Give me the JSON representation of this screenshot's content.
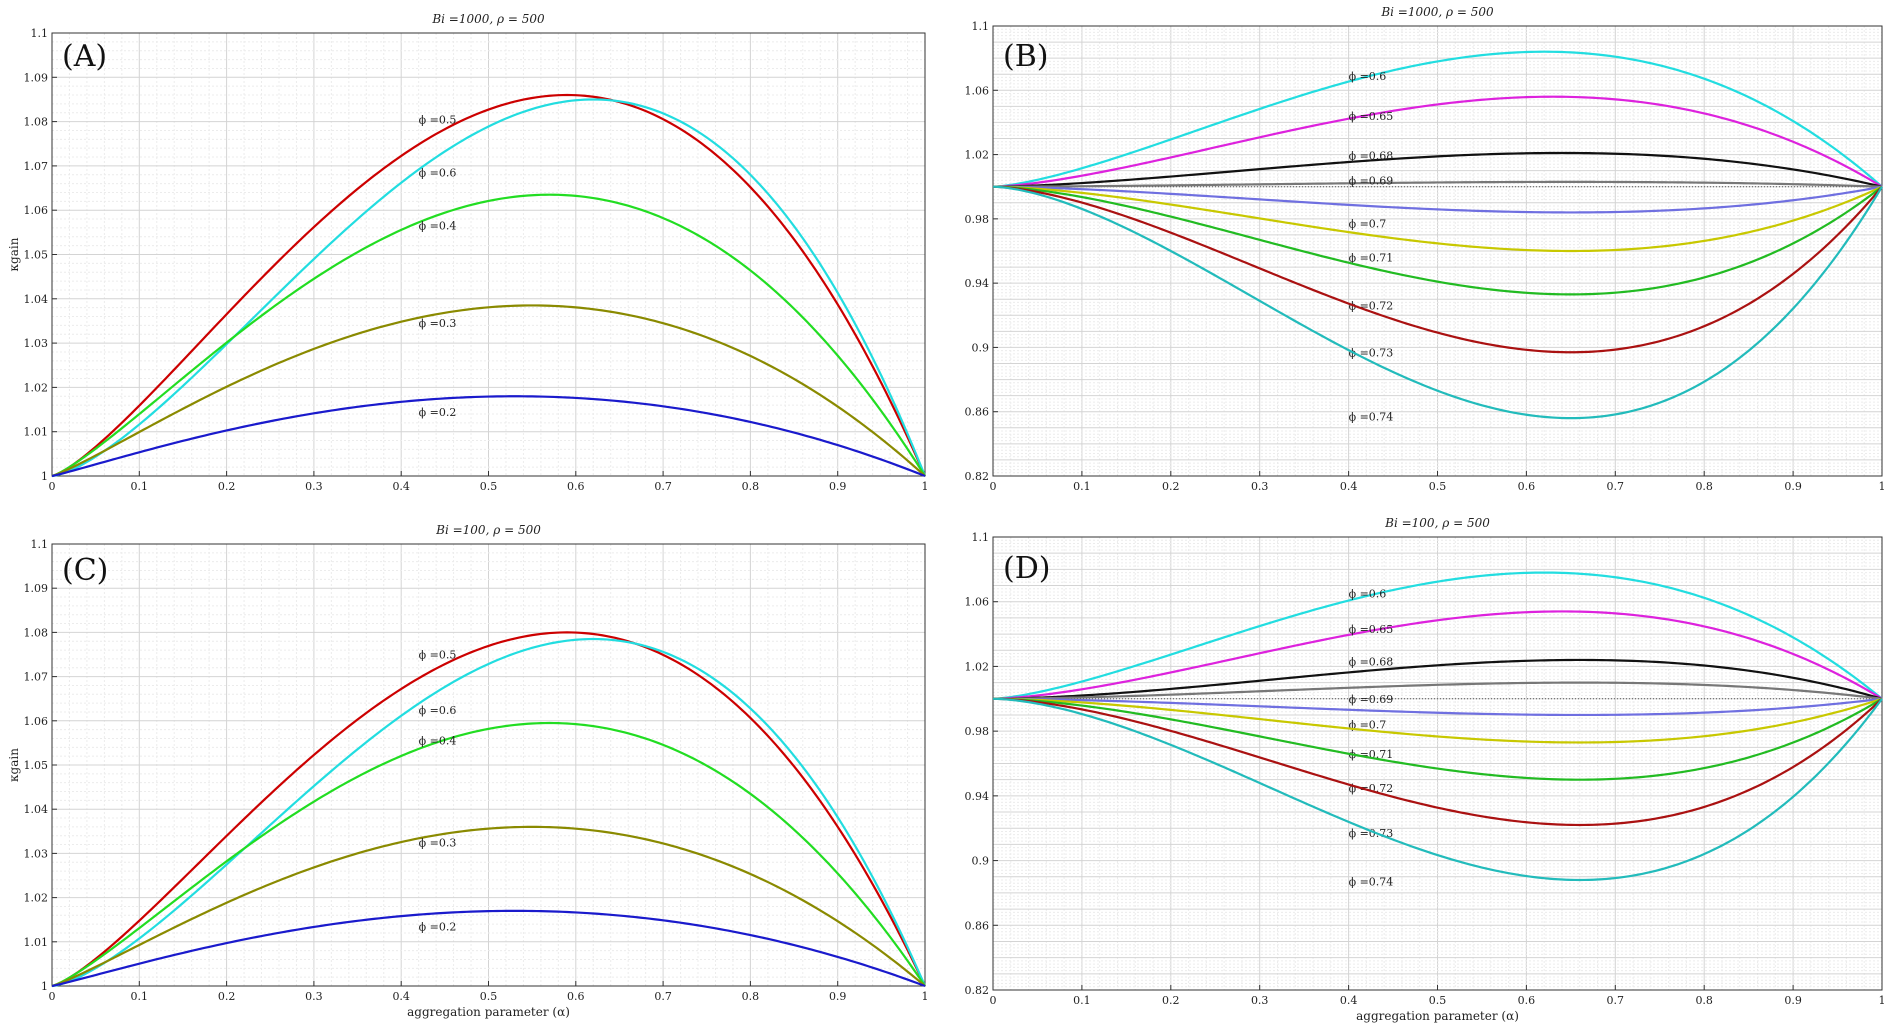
{
  "chart_data": [
    {
      "panel": "(A)",
      "type": "line",
      "title": "Bi =1000, ρ = 500",
      "xlabel": "",
      "ylabel": "κgain",
      "xlim": [
        0,
        1
      ],
      "ylim": [
        1,
        1.1
      ],
      "xticks": [
        "0",
        "0.1",
        "0.2",
        "0.3",
        "0.4",
        "0.5",
        "0.6",
        "0.7",
        "0.8",
        "0.9",
        "1"
      ],
      "yticks": [
        "1",
        "1.01",
        "1.02",
        "1.03",
        "1.04",
        "1.05",
        "1.06",
        "1.07",
        "1.08",
        "1.09",
        "1.1"
      ],
      "grid": true,
      "series": [
        {
          "name": "ϕ =0.5",
          "color": "#cc0000",
          "peak_x": 0.59,
          "peak_y": 1.086,
          "label_x": 0.42,
          "label_y": 1.0805
        },
        {
          "name": "ϕ =0.6",
          "color": "#22dde0",
          "peak_x": 0.62,
          "peak_y": 1.085,
          "label_x": 0.42,
          "label_y": 1.0685
        },
        {
          "name": "ϕ =0.4",
          "color": "#22dd22",
          "peak_x": 0.57,
          "peak_y": 1.0635,
          "label_x": 0.42,
          "label_y": 1.0565
        },
        {
          "name": "ϕ =0.3",
          "color": "#8a8a00",
          "peak_x": 0.55,
          "peak_y": 1.0385,
          "label_x": 0.42,
          "label_y": 1.0345
        },
        {
          "name": "ϕ =0.2",
          "color": "#1a1acc",
          "peak_x": 0.53,
          "peak_y": 1.018,
          "label_x": 0.42,
          "label_y": 1.0145
        }
      ]
    },
    {
      "panel": "(B)",
      "type": "line",
      "title": "Bi =1000, ρ = 500",
      "xlabel": "",
      "ylabel": "",
      "xlim": [
        0,
        1
      ],
      "ylim": [
        0.82,
        1.1
      ],
      "xticks": [
        "0",
        "0.1",
        "0.2",
        "0.3",
        "0.4",
        "0.5",
        "0.6",
        "0.7",
        "0.8",
        "0.9",
        "1"
      ],
      "yticks": [
        "0.82",
        "0.86",
        "0.9",
        "0.94",
        "0.98",
        "1.02",
        "1.06",
        "1.1"
      ],
      "ytick_values": [
        0.82,
        0.86,
        0.9,
        0.94,
        0.98,
        1.02,
        1.06,
        1.1
      ],
      "grid": true,
      "series": [
        {
          "name": "ϕ =0.6",
          "color": "#22dde0",
          "peak_x": 0.62,
          "peak_y": 1.084,
          "label_x": 0.4,
          "label_y": 1.069
        },
        {
          "name": "ϕ =0.65",
          "color": "#dd22dd",
          "peak_x": 0.63,
          "peak_y": 1.056,
          "label_x": 0.4,
          "label_y": 1.044
        },
        {
          "name": "ϕ =0.68",
          "color": "#111111",
          "peak_x": 0.64,
          "peak_y": 1.021,
          "label_x": 0.4,
          "label_y": 1.0195
        },
        {
          "name": "ϕ =0.69",
          "color": "#777777",
          "peak_x": 0.65,
          "peak_y": 1.003,
          "label_x": 0.4,
          "label_y": 1.004
        },
        {
          "name": "ϕ =0.7",
          "color": "#6f6fe0",
          "peak_x": 0.65,
          "peak_y": 0.984,
          "label_x": 0.4,
          "label_y": 0.977
        },
        {
          "name": "ϕ =0.71",
          "color": "#c8c800",
          "peak_x": 0.65,
          "peak_y": 0.96,
          "label_x": 0.4,
          "label_y": 0.956
        },
        {
          "name": "ϕ =0.72",
          "color": "#22bb22",
          "peak_x": 0.65,
          "peak_y": 0.933,
          "label_x": 0.4,
          "label_y": 0.926
        },
        {
          "name": "ϕ =0.73",
          "color": "#aa1111",
          "peak_x": 0.65,
          "peak_y": 0.897,
          "label_x": 0.4,
          "label_y": 0.897
        },
        {
          "name": "ϕ =0.74",
          "color": "#22bbbb",
          "peak_x": 0.65,
          "peak_y": 0.856,
          "label_x": 0.4,
          "label_y": 0.857
        }
      ]
    },
    {
      "panel": "(C)",
      "type": "line",
      "title": "Bi =100, ρ = 500",
      "xlabel": "aggregation parameter (α)",
      "ylabel": "κgain",
      "xlim": [
        0,
        1
      ],
      "ylim": [
        1,
        1.1
      ],
      "xticks": [
        "0",
        "0.1",
        "0.2",
        "0.3",
        "0.4",
        "0.5",
        "0.6",
        "0.7",
        "0.8",
        "0.9",
        "1"
      ],
      "yticks": [
        "1",
        "1.01",
        "1.02",
        "1.03",
        "1.04",
        "1.05",
        "1.06",
        "1.07",
        "1.08",
        "1.09",
        "1.1"
      ],
      "grid": true,
      "series": [
        {
          "name": "ϕ =0.5",
          "color": "#cc0000",
          "peak_x": 0.59,
          "peak_y": 1.08,
          "label_x": 0.42,
          "label_y": 1.075
        },
        {
          "name": "ϕ =0.6",
          "color": "#22dde0",
          "peak_x": 0.62,
          "peak_y": 1.0785,
          "label_x": 0.42,
          "label_y": 1.0625
        },
        {
          "name": "ϕ =0.4",
          "color": "#22dd22",
          "peak_x": 0.57,
          "peak_y": 1.0595,
          "label_x": 0.42,
          "label_y": 1.0555
        },
        {
          "name": "ϕ =0.3",
          "color": "#8a8a00",
          "peak_x": 0.55,
          "peak_y": 1.036,
          "label_x": 0.42,
          "label_y": 1.0325
        },
        {
          "name": "ϕ =0.2",
          "color": "#1a1acc",
          "peak_x": 0.53,
          "peak_y": 1.017,
          "label_x": 0.42,
          "label_y": 1.0135
        }
      ]
    },
    {
      "panel": "(D)",
      "type": "line",
      "title": "Bi =100, ρ = 500",
      "xlabel": "aggregation parameter (α)",
      "ylabel": "",
      "xlim": [
        0,
        1
      ],
      "ylim": [
        0.82,
        1.1
      ],
      "xticks": [
        "0",
        "0.1",
        "0.2",
        "0.3",
        "0.4",
        "0.5",
        "0.6",
        "0.7",
        "0.8",
        "0.9",
        "1"
      ],
      "yticks": [
        "0.82",
        "0.86",
        "0.9",
        "0.94",
        "0.98",
        "1.02",
        "1.06",
        "1.1"
      ],
      "ytick_values": [
        0.82,
        0.86,
        0.9,
        0.94,
        0.98,
        1.02,
        1.06,
        1.1
      ],
      "grid": true,
      "series": [
        {
          "name": "ϕ =0.6",
          "color": "#22dde0",
          "peak_x": 0.62,
          "peak_y": 1.078,
          "label_x": 0.4,
          "label_y": 1.065
        },
        {
          "name": "ϕ =0.65",
          "color": "#dd22dd",
          "peak_x": 0.64,
          "peak_y": 1.054,
          "label_x": 0.4,
          "label_y": 1.043
        },
        {
          "name": "ϕ =0.68",
          "color": "#111111",
          "peak_x": 0.66,
          "peak_y": 1.024,
          "label_x": 0.4,
          "label_y": 1.023
        },
        {
          "name": "ϕ =0.69",
          "color": "#777777",
          "peak_x": 0.66,
          "peak_y": 1.01,
          "label_x": 0.4,
          "label_y": 1.0
        },
        {
          "name": "ϕ =0.7",
          "color": "#6f6fe0",
          "peak_x": 0.66,
          "peak_y": 0.99,
          "label_x": 0.4,
          "label_y": 0.984
        },
        {
          "name": "ϕ =0.71",
          "color": "#c8c800",
          "peak_x": 0.66,
          "peak_y": 0.973,
          "label_x": 0.4,
          "label_y": 0.966
        },
        {
          "name": "ϕ =0.72",
          "color": "#22bb22",
          "peak_x": 0.66,
          "peak_y": 0.95,
          "label_x": 0.4,
          "label_y": 0.945
        },
        {
          "name": "ϕ =0.73",
          "color": "#aa1111",
          "peak_x": 0.66,
          "peak_y": 0.922,
          "label_x": 0.4,
          "label_y": 0.917
        },
        {
          "name": "ϕ =0.74",
          "color": "#22bbbb",
          "peak_x": 0.66,
          "peak_y": 0.888,
          "label_x": 0.4,
          "label_y": 0.887
        }
      ]
    }
  ]
}
